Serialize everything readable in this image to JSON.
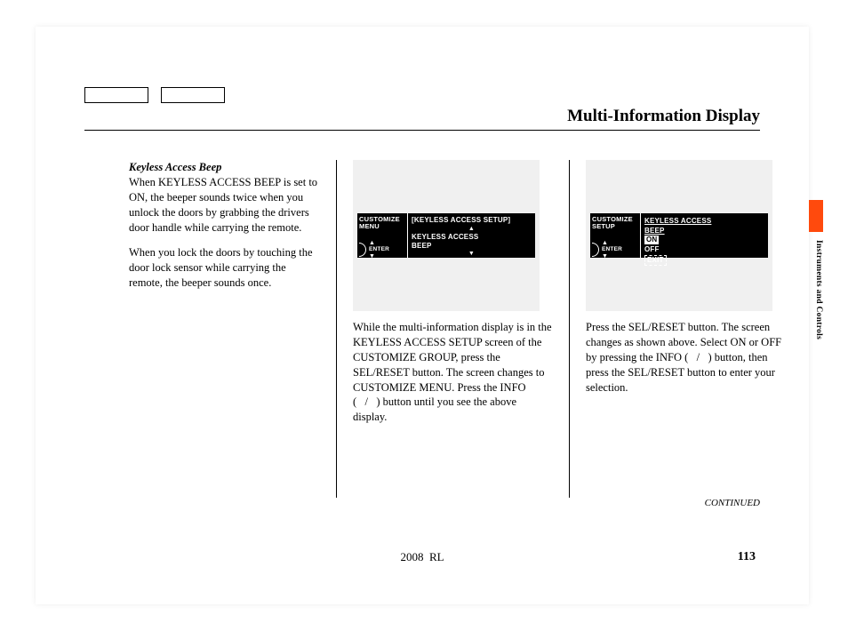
{
  "title": "Multi-Information Display",
  "section_title": "Keyless Access Beep",
  "col1": {
    "p1": "When KEYLESS ACCESS BEEP is set to ON, the beeper sounds twice when you unlock the doors by grabbing the drivers door handle while carrying the remote.",
    "p2": "When you lock the doors by touching the door lock sensor while carrying the remote, the beeper sounds once."
  },
  "col2": {
    "lcd_left_l1": "CUSTOMIZE",
    "lcd_left_l2": "MENU",
    "lcd_enter": "ENTER",
    "lcd_right_bracket": "[KEYLESS ACCESS SETUP]",
    "lcd_right_l1": "KEYLESS ACCESS",
    "lcd_right_l2": "BEEP",
    "text": "While the multi-information display is in the KEYLESS ACCESS SETUP screen of the CUSTOMIZE GROUP, press the SEL/RESET button. The screen changes to CUSTOMIZE MENU. Press the INFO (   /   ) button until you see the above display."
  },
  "col3": {
    "lcd_left_l1": "CUSTOMIZE",
    "lcd_left_l2": "SETUP",
    "lcd_enter": "ENTER",
    "lcd_right_l1": "KEYLESS ACCESS",
    "lcd_right_l2": "BEEP",
    "opt_on": "ON",
    "opt_off": "OFF",
    "opt_exit": "EXIT",
    "text": "Press the SEL/RESET button. The screen changes as shown above. Select ON or OFF by pressing the INFO (   /   ) button, then press the SEL/RESET button to enter your selection."
  },
  "continued": "CONTINUED",
  "footer_model": "2008  RL",
  "page_number": "113",
  "side_label": "Instruments and Controls",
  "colors": {
    "tab": "#ff4a0d",
    "screen_bg": "#f0f0f0",
    "lcd_bg": "#000000",
    "lcd_fg": "#ffffff"
  }
}
